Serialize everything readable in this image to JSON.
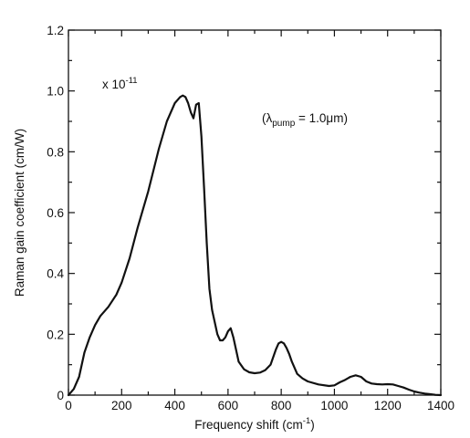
{
  "chart_data": {
    "type": "line",
    "title": "",
    "xlabel": "Frequency shift (cm",
    "xlabel_sup": "-1",
    "xlabel_close": ")",
    "ylabel": "Raman gain coefficient (cm/W)",
    "xlim": [
      0,
      1400
    ],
    "ylim": [
      0,
      1.2
    ],
    "x_ticks": [
      0,
      200,
      400,
      600,
      800,
      1000,
      1200,
      1400
    ],
    "x_tick_labels": [
      "0",
      "200",
      "400",
      "600",
      "800",
      "1000",
      "1200",
      "1400"
    ],
    "y_ticks": [
      0,
      0.2,
      0.4,
      0.6,
      0.8,
      1.0,
      1.2
    ],
    "y_tick_labels": [
      "0",
      "0.2",
      "0.4",
      "0.6",
      "0.8",
      "1.0",
      "1.2"
    ],
    "grid": false,
    "annotations": {
      "scale_base": "x 10",
      "scale_exp": "-11",
      "pump_open": "(λ",
      "pump_sub": "pump",
      "pump_rest": " = 1.0μm)"
    },
    "series": [
      {
        "x": [
          0,
          20,
          40,
          60,
          80,
          100,
          120,
          150,
          180,
          200,
          230,
          260,
          300,
          340,
          370,
          400,
          420,
          430,
          440,
          450,
          460,
          470,
          480,
          490,
          500,
          510,
          520,
          530,
          540,
          550,
          560,
          570,
          580,
          590,
          600,
          610,
          620,
          630,
          640,
          660,
          680,
          700,
          720,
          740,
          760,
          780,
          790,
          800,
          810,
          820,
          830,
          840,
          860,
          880,
          900,
          940,
          980,
          1000,
          1020,
          1040,
          1060,
          1080,
          1100,
          1120,
          1140,
          1160,
          1180,
          1200,
          1220,
          1240,
          1260,
          1280,
          1300,
          1320,
          1340,
          1360,
          1380,
          1400
        ],
        "y": [
          0,
          0.02,
          0.06,
          0.14,
          0.19,
          0.23,
          0.26,
          0.29,
          0.33,
          0.37,
          0.45,
          0.55,
          0.67,
          0.81,
          0.9,
          0.96,
          0.98,
          0.985,
          0.98,
          0.96,
          0.93,
          0.91,
          0.955,
          0.96,
          0.85,
          0.68,
          0.5,
          0.35,
          0.28,
          0.24,
          0.2,
          0.18,
          0.18,
          0.19,
          0.21,
          0.22,
          0.19,
          0.15,
          0.11,
          0.085,
          0.075,
          0.072,
          0.074,
          0.082,
          0.1,
          0.15,
          0.17,
          0.175,
          0.17,
          0.155,
          0.135,
          0.11,
          0.07,
          0.055,
          0.045,
          0.035,
          0.03,
          0.032,
          0.042,
          0.05,
          0.06,
          0.065,
          0.06,
          0.045,
          0.038,
          0.036,
          0.035,
          0.036,
          0.035,
          0.03,
          0.025,
          0.018,
          0.012,
          0.008,
          0.005,
          0.003,
          0.001,
          0
        ]
      }
    ]
  }
}
